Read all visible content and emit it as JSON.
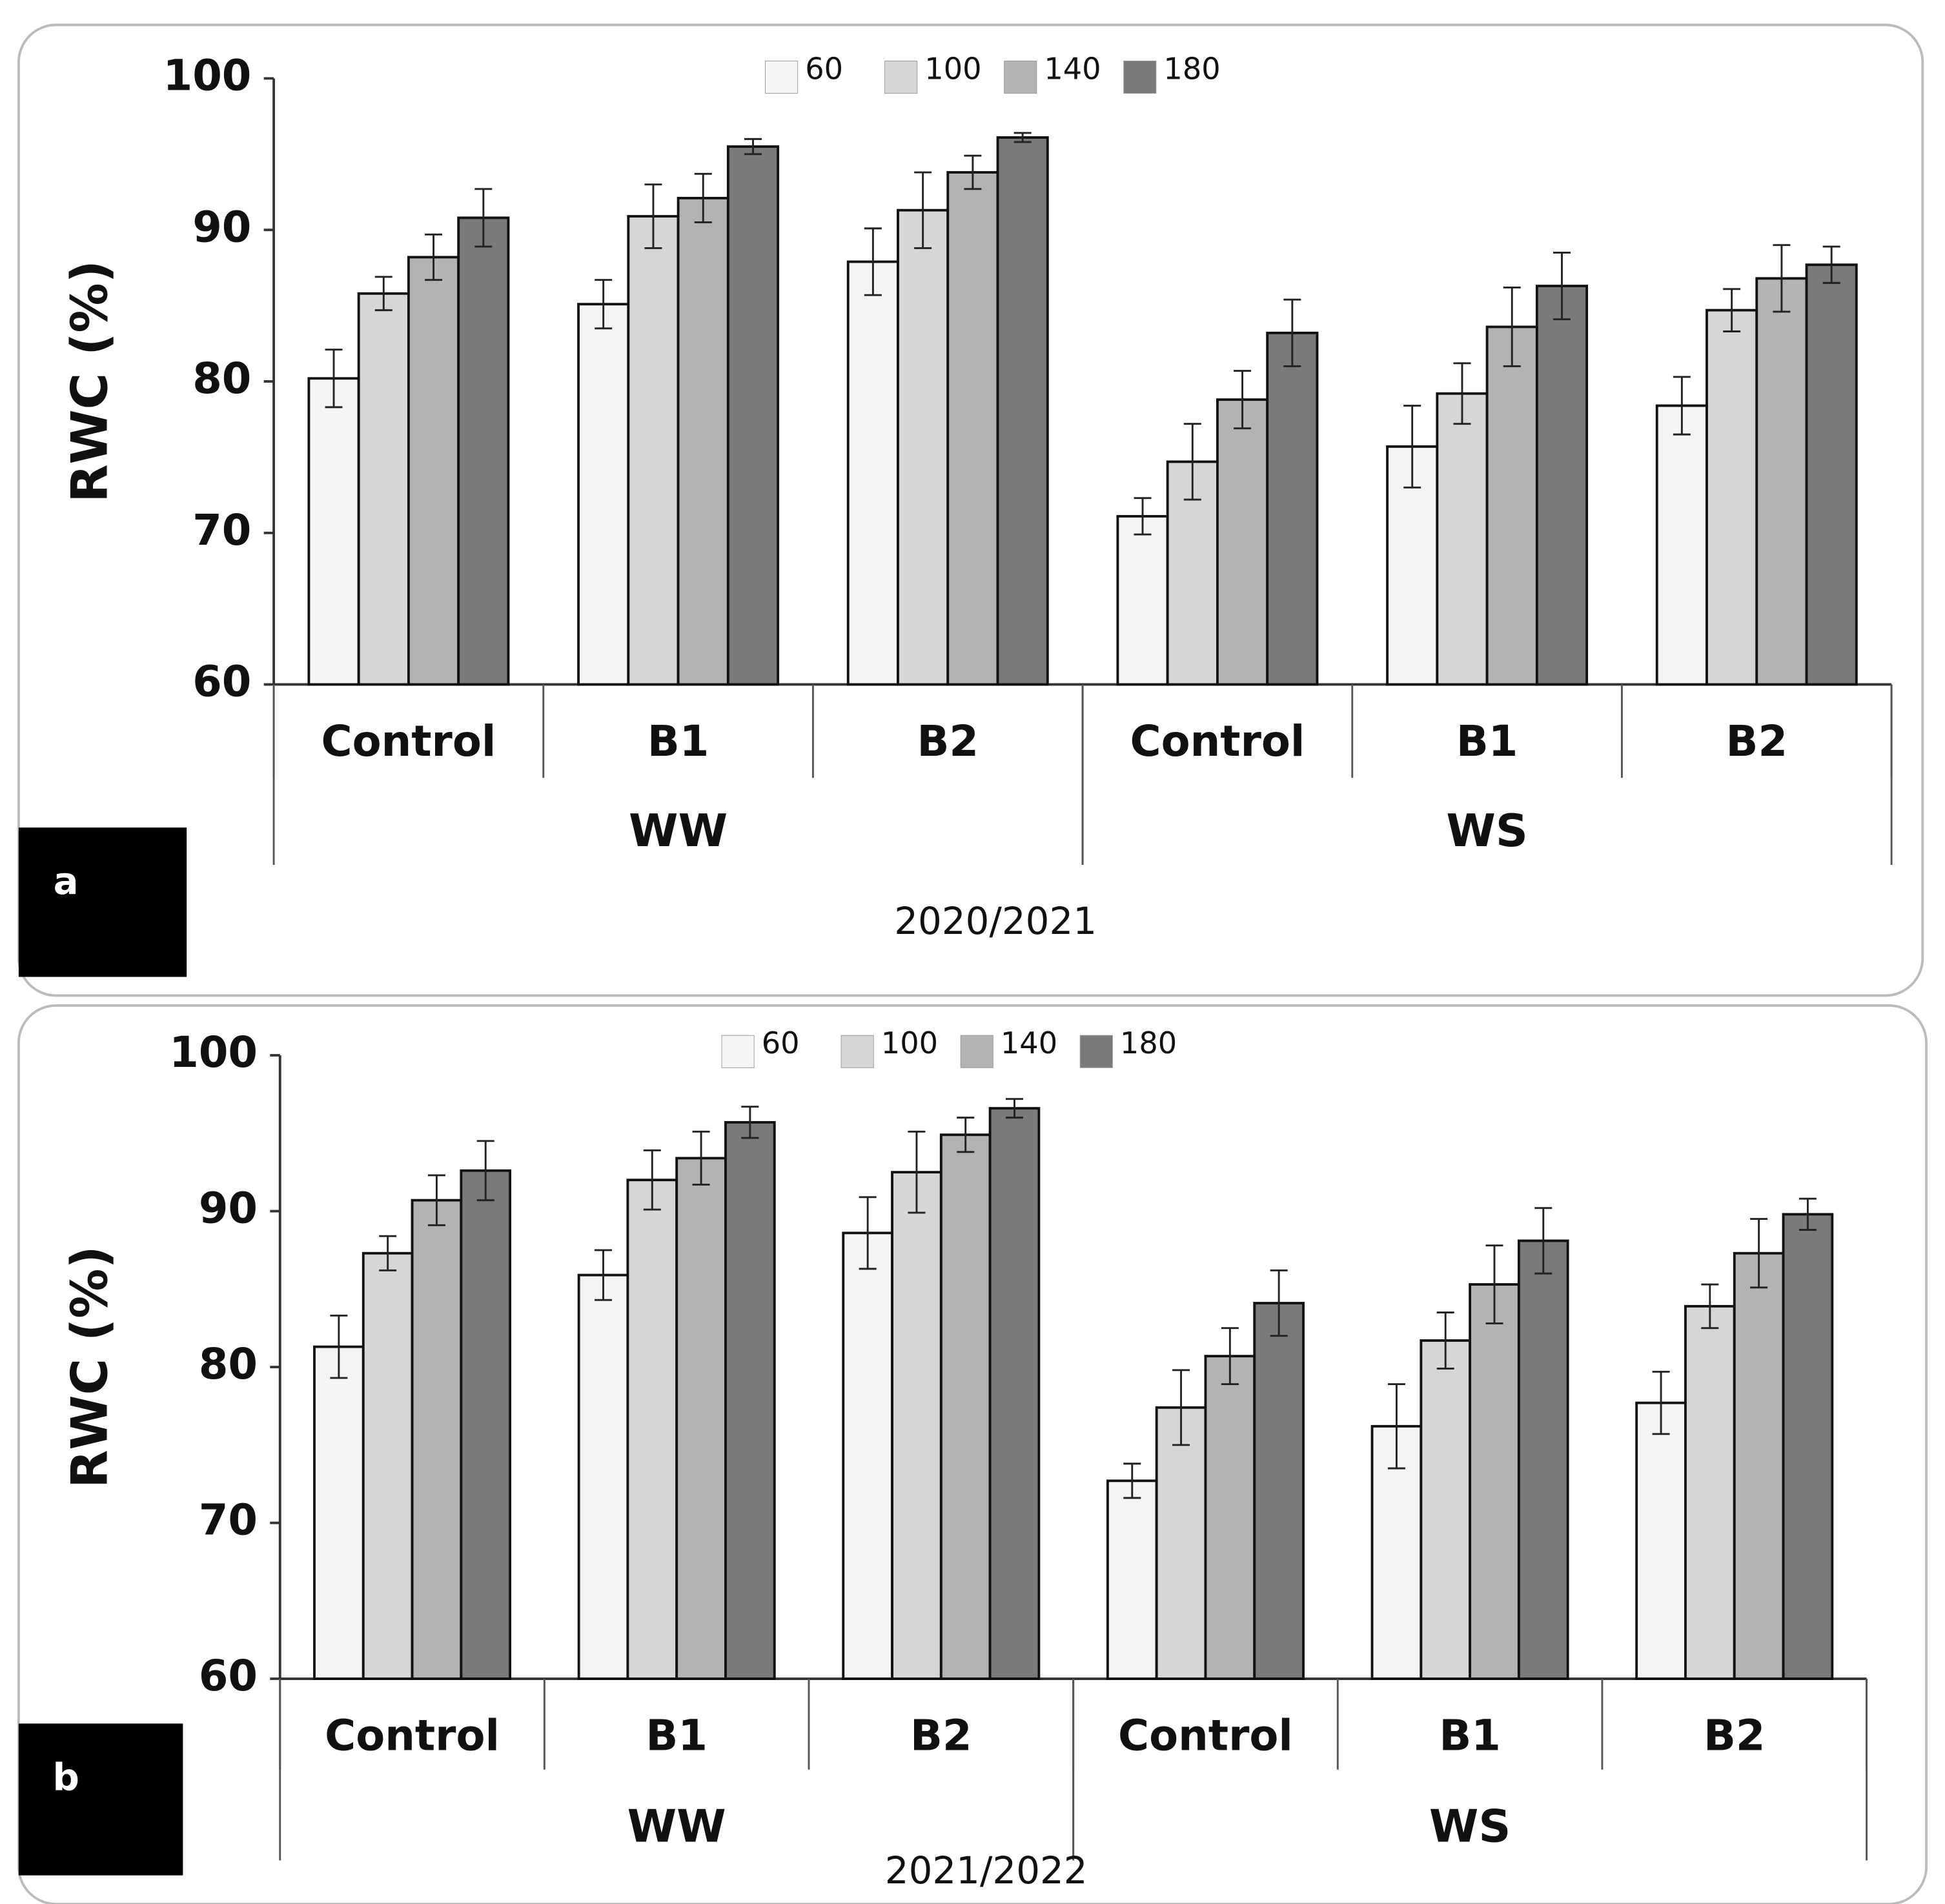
{
  "chart_data": [
    {
      "type": "bar",
      "panel_label": "a",
      "caption": "2020/2021",
      "y_label": "RWC (%)",
      "categories": [
        "Control",
        "B1",
        "B2",
        "Control",
        "B1",
        "B2"
      ],
      "groups": [
        "WW",
        "WS"
      ],
      "ylim": [
        60,
        100
      ],
      "yticks": [
        60,
        70,
        80,
        90,
        100
      ],
      "series": [
        {
          "name": "60",
          "color": "#f4f4f4",
          "values": [
            80.2,
            85.1,
            87.9,
            71.1,
            75.7,
            78.4
          ],
          "errors": [
            1.9,
            1.6,
            2.2,
            1.2,
            2.7,
            1.9
          ]
        },
        {
          "name": "100",
          "color": "#d6d6d6",
          "values": [
            85.8,
            90.9,
            91.3,
            74.7,
            79.2,
            84.7
          ],
          "errors": [
            1.1,
            2.1,
            2.5,
            2.5,
            2.0,
            1.4
          ]
        },
        {
          "name": "140",
          "color": "#b3b3b3",
          "values": [
            88.2,
            92.1,
            93.8,
            78.8,
            83.6,
            86.8
          ],
          "errors": [
            1.5,
            1.6,
            1.1,
            1.9,
            2.6,
            2.2
          ]
        },
        {
          "name": "180",
          "color": "#7a7a7a",
          "values": [
            90.8,
            95.5,
            96.1,
            83.2,
            86.3,
            87.7
          ],
          "errors": [
            1.9,
            0.5,
            0.3,
            2.2,
            2.2,
            1.2
          ]
        }
      ]
    },
    {
      "type": "bar",
      "panel_label": "b",
      "caption": "2021/2022",
      "y_label": "RWC (%)",
      "categories": [
        "Control",
        "B1",
        "B2",
        "Control",
        "B1",
        "B2"
      ],
      "groups": [
        "WW",
        "WS"
      ],
      "ylim": [
        60,
        100
      ],
      "yticks": [
        60,
        70,
        80,
        90,
        100
      ],
      "series": [
        {
          "name": "60",
          "color": "#f4f4f4",
          "values": [
            81.3,
            85.9,
            88.6,
            72.7,
            76.2,
            77.7
          ],
          "errors": [
            2.0,
            1.6,
            2.3,
            1.1,
            2.7,
            2.0
          ]
        },
        {
          "name": "100",
          "color": "#d6d6d6",
          "values": [
            87.3,
            92.0,
            92.5,
            77.4,
            81.7,
            83.9
          ],
          "errors": [
            1.1,
            1.9,
            2.6,
            2.4,
            1.8,
            1.4
          ]
        },
        {
          "name": "140",
          "color": "#b3b3b3",
          "values": [
            90.7,
            93.4,
            94.9,
            80.7,
            85.3,
            87.3
          ],
          "errors": [
            1.6,
            1.7,
            1.1,
            1.8,
            2.5,
            2.2
          ]
        },
        {
          "name": "180",
          "color": "#7a7a7a",
          "values": [
            92.6,
            95.7,
            96.6,
            84.1,
            88.1,
            89.8
          ],
          "errors": [
            1.9,
            1.0,
            0.6,
            2.1,
            2.1,
            1.0
          ]
        }
      ]
    }
  ]
}
